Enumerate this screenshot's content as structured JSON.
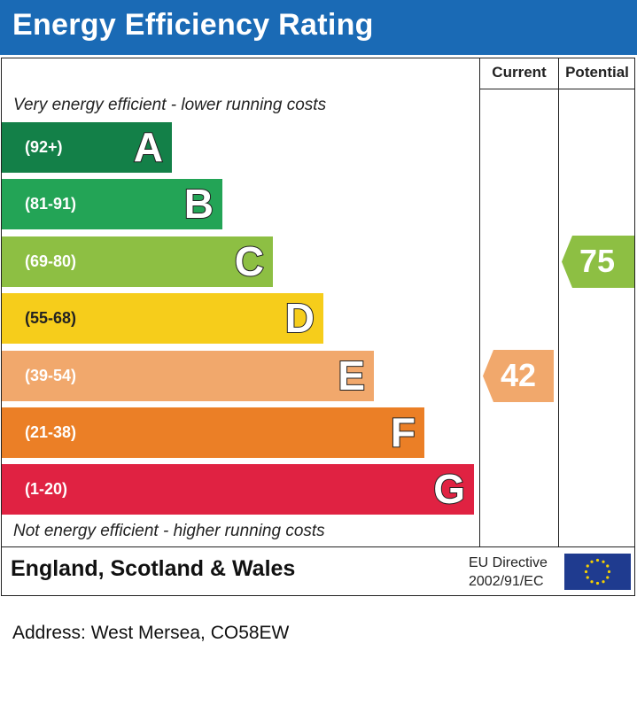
{
  "title": "Energy Efficiency Rating",
  "columns": {
    "current": "Current",
    "potential": "Potential"
  },
  "captions": {
    "top": "Very energy efficient - lower running costs",
    "bottom": "Not energy efficient - higher running costs"
  },
  "chart_data": {
    "type": "bar",
    "categories": [
      "A",
      "B",
      "C",
      "D",
      "E",
      "F",
      "G"
    ],
    "ranges": [
      "(92+)",
      "(81-91)",
      "(69-80)",
      "(55-68)",
      "(39-54)",
      "(21-38)",
      "(1-20)"
    ],
    "colors": [
      "#138048",
      "#23a456",
      "#8dbf43",
      "#f6cd1b",
      "#f1a86c",
      "#eb7f26",
      "#e02242"
    ],
    "current": {
      "value": 42,
      "band": "E",
      "color": "#f1a86c"
    },
    "potential": {
      "value": 75,
      "band": "C",
      "color": "#8dbf43"
    }
  },
  "footer": {
    "region": "England, Scotland & Wales",
    "directive_line1": "EU Directive",
    "directive_line2": "2002/91/EC"
  },
  "address": "Address: West Mersea, CO58EW"
}
